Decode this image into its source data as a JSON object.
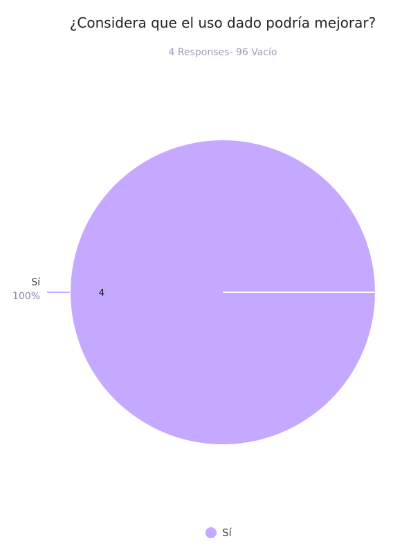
{
  "chart_data": {
    "type": "pie",
    "title": "¿Considera que el uso dado podría mejorar?",
    "subtitle": "4 Responses- 96 Vacío",
    "slices": [
      {
        "label": "Sí",
        "value": 4,
        "value_label": "4",
        "percent_label": "100%",
        "color": "#c5a8ff"
      }
    ],
    "legend": {
      "position": "bottom",
      "items": [
        {
          "label": "Sí",
          "color": "#c5a8ff"
        }
      ]
    }
  }
}
